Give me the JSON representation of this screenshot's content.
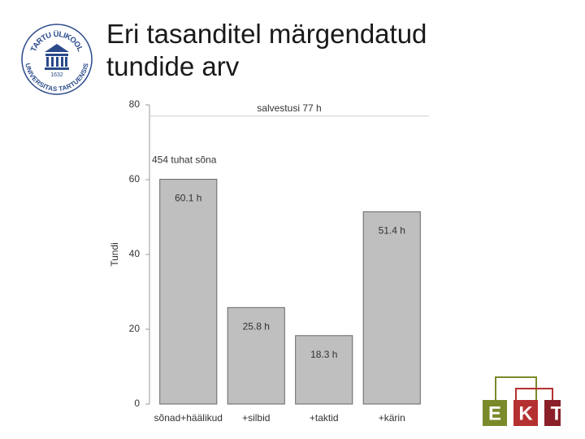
{
  "slide": {
    "title": "Eri tasanditel märgendatud tundide arv"
  },
  "logos": {
    "university": {
      "top": "TARTU ÜLIKOOL",
      "bottom": "UNIVERSITAS TARTUENSIS",
      "year": "1632"
    },
    "ekt": {
      "letters": [
        "E",
        "K",
        "T"
      ]
    }
  },
  "chart_data": {
    "type": "bar",
    "y_label": "Tundi",
    "categories": [
      "sõnad+häälikud",
      "+silbid",
      "+taktid",
      "+kärin"
    ],
    "values": [
      60.1,
      25.8,
      18.3,
      51.4
    ],
    "value_labels": [
      "60.1 h",
      "25.8 h",
      "18.3 h",
      "51.4 h"
    ],
    "color": "#bfbfbf",
    "ylim": [
      0,
      80
    ],
    "yticks": [
      0,
      20,
      40,
      60,
      80
    ],
    "reference_line": {
      "value": 77,
      "label": "salvestusi 77 h"
    },
    "annotation": "454 tuhat sõna"
  }
}
